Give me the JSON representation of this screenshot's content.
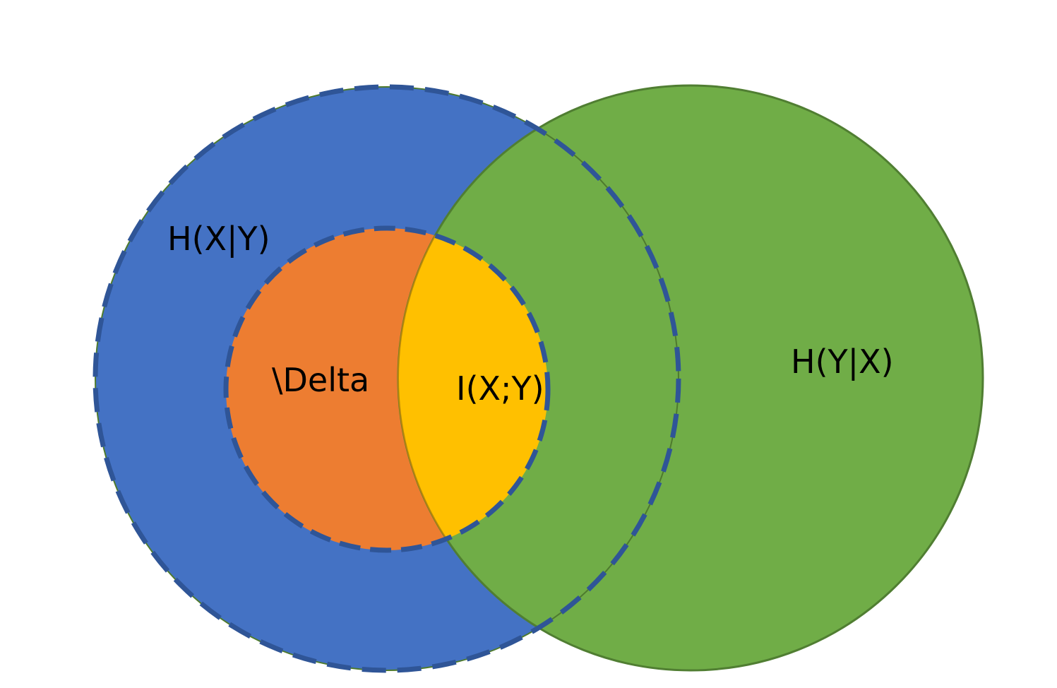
{
  "labels": {
    "h_x_given_y": "H(X|Y)",
    "delta": "\\Delta",
    "mutual_info": "I(X;Y)",
    "h_y_given_x": "H(Y|X)"
  },
  "colors": {
    "outer_circle_fill": "#4472C4",
    "outer_circle_border": "#2F5597",
    "inner_circle_fill": "#ED7D31",
    "intersection_fill": "#FFC000",
    "right_circle_fill": "#70AD47",
    "right_circle_border": "#507E32"
  }
}
